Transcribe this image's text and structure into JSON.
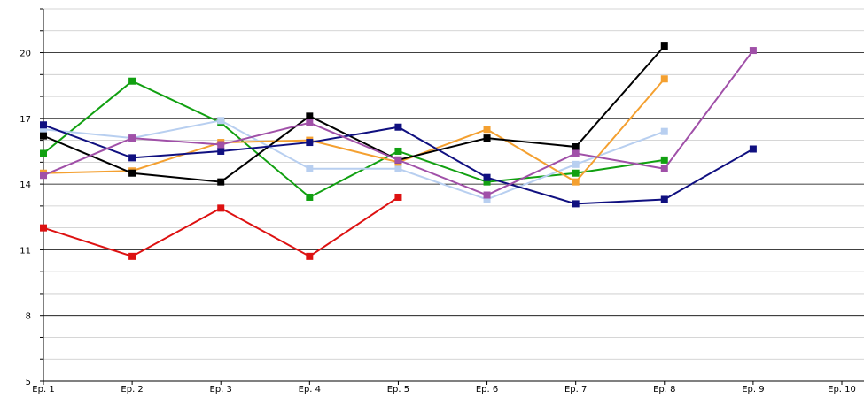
{
  "chart_data": {
    "type": "line",
    "title": "",
    "xlabel": "",
    "ylabel": "",
    "categories": [
      "Ep. 1",
      "Ep. 2",
      "Ep. 3",
      "Ep. 4",
      "Ep. 5",
      "Ep. 6",
      "Ep. 7",
      "Ep. 8",
      "Ep. 9",
      "Ep. 10"
    ],
    "ylim": [
      5,
      22
    ],
    "y_ticks": [
      5,
      8,
      11,
      14,
      17,
      20
    ],
    "y_tick_labels": [
      "5",
      "8",
      "11",
      "14",
      "17",
      "20"
    ],
    "y_minor_step": 1,
    "grid": true,
    "legend": "none",
    "series": [
      {
        "color": "#dd1111",
        "values": [
          12.0,
          10.7,
          12.9,
          10.7,
          13.4,
          null,
          null,
          null,
          null,
          null
        ]
      },
      {
        "color": "#11a011",
        "values": [
          15.4,
          18.7,
          16.8,
          13.4,
          15.5,
          14.1,
          14.5,
          15.1,
          null,
          null
        ]
      },
      {
        "color": "#b8cff0",
        "values": [
          16.5,
          16.1,
          16.9,
          14.7,
          14.7,
          13.3,
          14.9,
          16.4,
          null,
          null
        ]
      },
      {
        "color": "#f4a030",
        "values": [
          14.5,
          14.6,
          15.9,
          16.0,
          15.0,
          16.5,
          14.1,
          18.8,
          null,
          null
        ]
      },
      {
        "color": "#000000",
        "values": [
          16.2,
          14.5,
          14.1,
          17.1,
          15.1,
          16.1,
          15.7,
          20.3,
          null,
          null
        ]
      },
      {
        "color": "#101080",
        "values": [
          16.7,
          15.2,
          15.5,
          15.9,
          16.6,
          14.3,
          13.1,
          13.3,
          15.6,
          null
        ]
      },
      {
        "color": "#a050a8",
        "values": [
          14.4,
          16.1,
          15.8,
          16.8,
          15.1,
          13.5,
          15.4,
          14.7,
          20.1,
          null
        ]
      }
    ]
  }
}
